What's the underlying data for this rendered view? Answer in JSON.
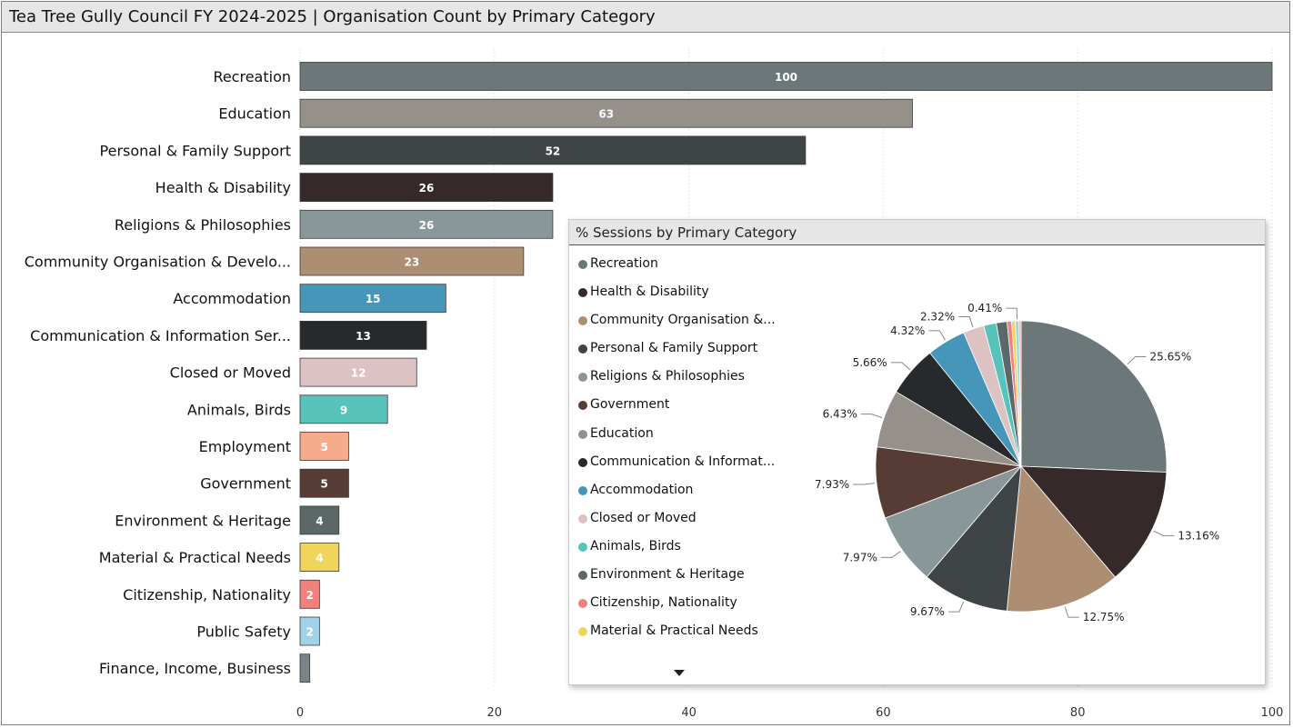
{
  "header": {
    "title": "Tea Tree Gully Council FY 2024-2025 | Organisation Count by Primary Category"
  },
  "chart_data": [
    {
      "type": "bar",
      "orientation": "horizontal",
      "title": "Tea Tree Gully Council FY 2024-2025 | Organisation Count by Primary Category",
      "categories": [
        "Recreation",
        "Education",
        "Personal & Family Support",
        "Health & Disability",
        "Religions & Philosophies",
        "Community Organisation & Develo...",
        "Accommodation",
        "Communication & Information Ser...",
        "Closed or Moved",
        "Animals, Birds",
        "Employment",
        "Government",
        "Environment & Heritage",
        "Material & Practical Needs",
        "Citizenship, Nationality",
        "Public Safety",
        "Finance, Income, Business"
      ],
      "values": [
        100,
        63,
        52,
        26,
        26,
        23,
        15,
        13,
        12,
        9,
        5,
        5,
        4,
        4,
        2,
        2,
        1
      ],
      "data_labels": [
        "100",
        "63",
        "52",
        "26",
        "26",
        "23",
        "15",
        "13",
        "12",
        "9",
        "5",
        "5",
        "4",
        "4",
        "2",
        "2",
        ""
      ],
      "colors": [
        "#6b7779",
        "#959089",
        "#3f4547",
        "#352a29",
        "#8a9799",
        "#ad8e73",
        "#4596b9",
        "#262a2c",
        "#dcc2c2",
        "#58c3bb",
        "#f6ab8a",
        "#573c36",
        "#5c6768",
        "#efd55c",
        "#f2807b",
        "#a2d2e8",
        "#7a8486"
      ],
      "xlim": [
        0,
        100
      ],
      "xticks": [
        "0",
        "20",
        "40",
        "60",
        "80",
        "100"
      ],
      "grid": true
    },
    {
      "type": "pie",
      "title": "% Sessions by Primary Category",
      "legend_position": "left",
      "legend": [
        "Recreation",
        "Health & Disability",
        "Community Organisation &...",
        "Personal & Family Support",
        "Religions & Philosophies",
        "Government",
        "Education",
        "Communication & Informat...",
        "Accommodation",
        "Closed or Moved",
        "Animals, Birds",
        "Environment & Heritage",
        "Citizenship, Nationality",
        "Material & Practical Needs"
      ],
      "slices": [
        {
          "name": "Recreation",
          "value": 25.65,
          "label": "25.65%",
          "color": "#6b7779"
        },
        {
          "name": "Health & Disability",
          "value": 13.16,
          "label": "13.16%",
          "color": "#352a29"
        },
        {
          "name": "Community Organisation &...",
          "value": 12.75,
          "label": "12.75%",
          "color": "#ad8e73"
        },
        {
          "name": "Personal & Family Support",
          "value": 9.67,
          "label": "9.67%",
          "color": "#3f4547"
        },
        {
          "name": "Religions & Philosophies",
          "value": 7.97,
          "label": "7.97%",
          "color": "#8a9799"
        },
        {
          "name": "Government",
          "value": 7.93,
          "label": "7.93%",
          "color": "#573c36"
        },
        {
          "name": "Education",
          "value": 6.43,
          "label": "6.43%",
          "color": "#959089"
        },
        {
          "name": "Communication & Informat...",
          "value": 5.66,
          "label": "5.66%",
          "color": "#262a2c"
        },
        {
          "name": "Accommodation",
          "value": 4.32,
          "label": "4.32%",
          "color": "#4596b9"
        },
        {
          "name": "Closed or Moved",
          "value": 2.32,
          "label": "2.32%",
          "color": "#dcc2c2"
        },
        {
          "name": "Animals, Birds",
          "value": 1.4,
          "label": "",
          "color": "#58c3bb"
        },
        {
          "name": "Environment & Heritage",
          "value": 1.2,
          "label": "",
          "color": "#5c6768"
        },
        {
          "name": "Citizenship, Nationality",
          "value": 0.5,
          "label": "",
          "color": "#f2807b"
        },
        {
          "name": "Material & Practical Needs",
          "value": 0.4,
          "label": "",
          "color": "#efd55c"
        },
        {
          "name": "",
          "value": 0.41,
          "label": "0.41%",
          "color": "#a2d2e8"
        },
        {
          "name": "",
          "value": 0.23,
          "label": "",
          "color": "#f6ab8a"
        }
      ]
    }
  ]
}
